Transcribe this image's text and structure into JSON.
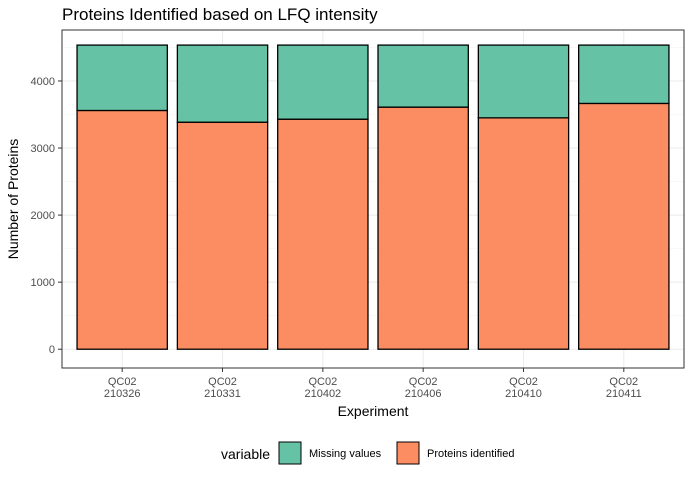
{
  "chart_data": {
    "type": "bar",
    "stacked": true,
    "title": "Proteins Identified based on LFQ intensity",
    "xlabel": "Experiment",
    "ylabel": "Number of Proteins",
    "categories": [
      [
        "QC02",
        "210326"
      ],
      [
        "QC02",
        "210331"
      ],
      [
        "QC02",
        "210402"
      ],
      [
        "QC02",
        "210406"
      ],
      [
        "QC02",
        "210410"
      ],
      [
        "QC02",
        "210411"
      ]
    ],
    "series": [
      {
        "name": "Proteins identified",
        "color": "#FC8D62",
        "values": [
          3560,
          3385,
          3430,
          3610,
          3450,
          3665
        ]
      },
      {
        "name": "Missing values",
        "color": "#66C2A5",
        "values": [
          975,
          1150,
          1105,
          925,
          1085,
          870
        ]
      }
    ],
    "yticks": [
      0,
      1000,
      2000,
      3000,
      4000
    ],
    "ylim": [
      -280,
      4760
    ],
    "grid": true,
    "legend": {
      "title": "variable",
      "position": "bottom",
      "entries": [
        "Missing values",
        "Proteins identified"
      ]
    }
  }
}
